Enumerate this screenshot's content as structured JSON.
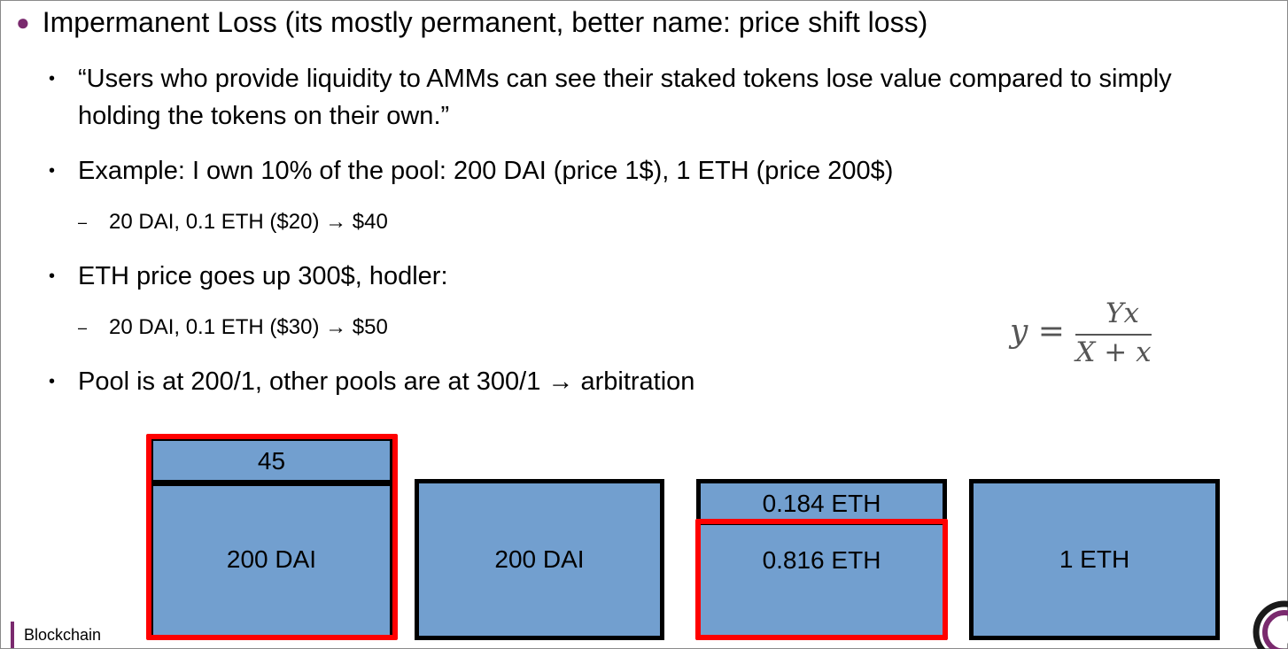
{
  "title": "Impermanent Loss (its mostly permanent, better name: price shift loss)",
  "bullets": {
    "b1_line1": "“Users who provide liquidity to AMMs can see their staked tokens lose value compared to simply",
    "b1_line2": "holding the tokens on their own.”",
    "b2": "Example: I own 10% of the pool: 200 DAI (price 1$), 1 ETH (price 200$)",
    "b2_sub": "20 DAI, 0.1 ETH ($20) → $40",
    "b3": "ETH price goes up 300$, hodler:",
    "b3_sub": "20 DAI, 0.1 ETH ($30) → $50",
    "b4": "Pool is at 200/1, other pools are at 300/1 → arbitration"
  },
  "formula": {
    "lhs": "y =",
    "numerator": "Yx",
    "denominator": "X + x"
  },
  "boxes": {
    "box1_top": "45",
    "box1_bottom": "200 DAI",
    "box2": "200 DAI",
    "box3_top": "0.184 ETH",
    "box3_bottom": "0.816 ETH",
    "box4": "1 ETH"
  },
  "colors": {
    "box_fill": "#729fcf",
    "highlight": "#ff0000",
    "accent": "#7a2a6e"
  },
  "footer": {
    "label": "Blockchain"
  }
}
